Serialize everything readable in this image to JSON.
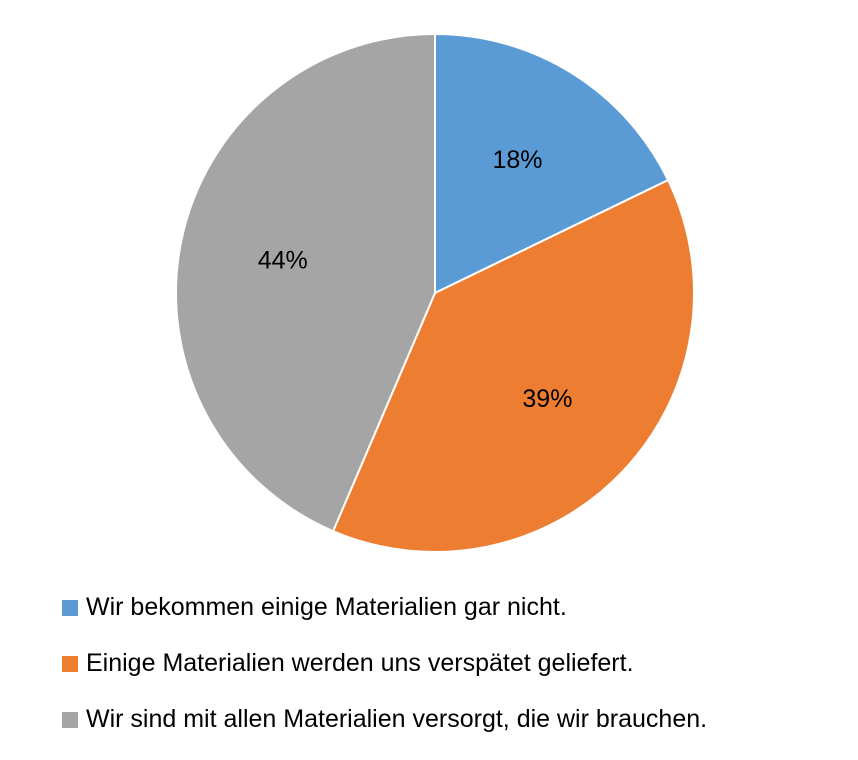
{
  "chart_data": {
    "type": "pie",
    "title": "",
    "slices": [
      {
        "label": "Wir bekommen einige Materialien gar nicht.",
        "value": 18,
        "display": "18%",
        "color": "#5B9BD5"
      },
      {
        "label": "Einige Materialien werden uns verspätet geliefert.",
        "value": 39,
        "display": "39%",
        "color": "#ED7D31"
      },
      {
        "label": "Wir sind mit allen Materialien versorgt, die wir brauchen.",
        "value": 44,
        "display": "44%",
        "color": "#A5A5A5"
      }
    ],
    "start_angle": "12 o'clock",
    "direction": "clockwise",
    "legend_position": "bottom"
  }
}
